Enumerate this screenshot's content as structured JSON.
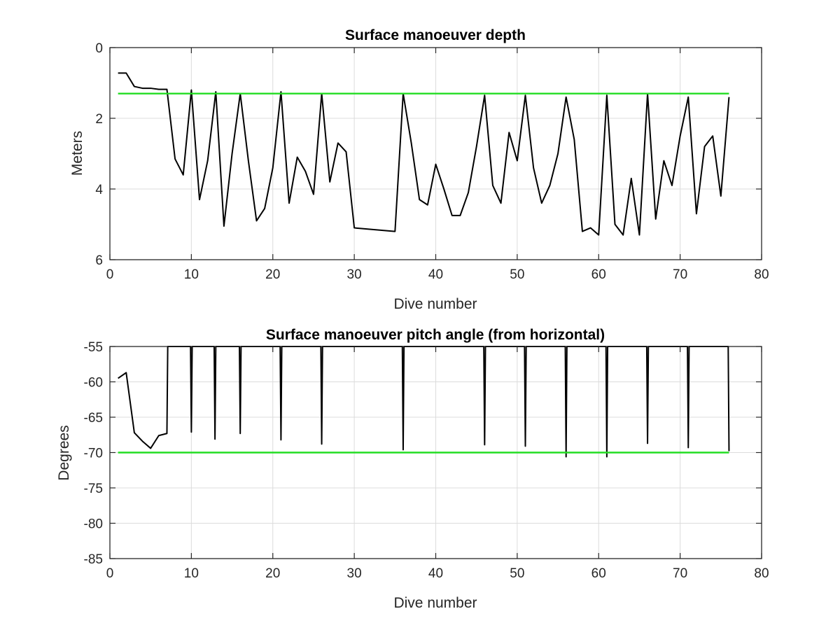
{
  "colors": {
    "data_line": "#000000",
    "reference_line": "#22dd22",
    "grid": "#dcdcdc",
    "axes": "#262626"
  },
  "chart_data": [
    {
      "type": "line",
      "title": "Surface manoeuver depth",
      "xlabel": "Dive number",
      "ylabel": "Meters",
      "xlim": [
        0,
        80
      ],
      "ylim": [
        0,
        6
      ],
      "y_reversed": true,
      "grid": true,
      "x_ticks": [
        0,
        10,
        20,
        30,
        40,
        50,
        60,
        70,
        80
      ],
      "y_ticks": [
        0,
        2,
        4,
        6
      ],
      "series": [
        {
          "color": "#000000",
          "x": [
            1,
            2,
            3,
            4,
            5,
            6,
            7,
            8,
            9,
            10,
            11,
            12,
            13,
            14,
            15,
            16,
            17,
            18,
            19,
            20,
            21,
            22,
            23,
            24,
            25,
            26,
            27,
            28,
            29,
            30,
            35,
            36,
            37,
            38,
            39,
            40,
            41,
            42,
            43,
            44,
            45,
            46,
            47,
            48,
            49,
            50,
            51,
            52,
            53,
            54,
            55,
            56,
            57,
            58,
            59,
            60,
            61,
            62,
            63,
            64,
            65,
            66,
            67,
            68,
            69,
            70,
            71,
            72,
            73,
            74,
            75,
            76
          ],
          "y": [
            0.72,
            0.72,
            1.1,
            1.15,
            1.15,
            1.18,
            1.18,
            3.15,
            3.6,
            1.2,
            4.3,
            3.2,
            1.25,
            5.05,
            3.0,
            1.3,
            3.2,
            4.9,
            4.55,
            3.4,
            1.25,
            4.4,
            3.1,
            3.5,
            4.15,
            1.3,
            3.8,
            2.7,
            2.95,
            5.1,
            5.2,
            1.3,
            2.7,
            4.3,
            4.45,
            3.3,
            4.0,
            4.75,
            4.75,
            4.1,
            2.8,
            1.35,
            3.9,
            4.4,
            2.4,
            3.2,
            1.35,
            3.4,
            4.4,
            3.9,
            3.0,
            1.4,
            2.6,
            5.2,
            5.1,
            5.3,
            1.35,
            5.0,
            5.3,
            3.7,
            5.3,
            1.3,
            4.85,
            3.2,
            3.9,
            2.5,
            1.4,
            4.7,
            2.8,
            2.5,
            4.2,
            1.4
          ]
        },
        {
          "color": "#22dd22",
          "x": [
            1,
            76
          ],
          "y": [
            1.3,
            1.3
          ]
        }
      ]
    },
    {
      "type": "line",
      "title": "Surface manoeuver pitch angle (from horizontal)",
      "xlabel": "Dive number",
      "ylabel": "Degrees",
      "xlim": [
        0,
        80
      ],
      "ylim": [
        -85,
        -55
      ],
      "grid": true,
      "x_ticks": [
        0,
        10,
        20,
        30,
        40,
        50,
        60,
        70,
        80
      ],
      "y_ticks": [
        -55,
        -60,
        -65,
        -70,
        -75,
        -80,
        -85
      ],
      "series": [
        {
          "color": "#000000",
          "x": [
            1,
            2,
            3,
            4,
            5,
            6,
            7,
            7.1,
            9.9,
            10,
            10.1,
            12.8,
            12.9,
            13,
            15.9,
            16,
            16.1,
            20.9,
            21,
            21.1,
            25.9,
            26,
            26.1,
            35.9,
            36,
            36.1,
            45.9,
            46,
            46.1,
            50.9,
            51,
            51.1,
            55.9,
            56,
            56.1,
            60.9,
            61,
            61.1,
            65.9,
            66,
            66.1,
            70.9,
            71,
            71.1,
            75.9,
            76
          ],
          "y": [
            -59.5,
            -58.7,
            -67.2,
            -68.4,
            -69.4,
            -67.6,
            -67.3,
            -55,
            -55,
            -67.1,
            -55,
            -55,
            -68.1,
            -55,
            -55,
            -67.3,
            -55,
            -55,
            -68.2,
            -55,
            -55,
            -68.8,
            -55,
            -55,
            -69.6,
            -55,
            -55,
            -68.9,
            -55,
            -55,
            -69.1,
            -55,
            -55,
            -70.6,
            -55,
            -55,
            -70.6,
            -55,
            -55,
            -68.7,
            -55,
            -55,
            -69.3,
            -55,
            -55,
            -69.8
          ]
        },
        {
          "color": "#22dd22",
          "x": [
            1,
            76
          ],
          "y": [
            -70,
            -70
          ]
        }
      ]
    }
  ]
}
